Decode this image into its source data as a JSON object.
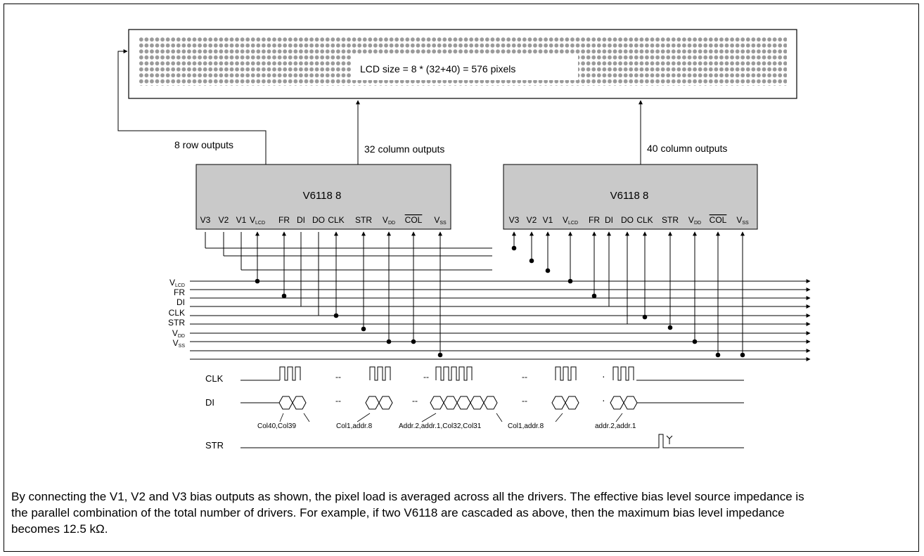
{
  "lcd": {
    "label": "LCD size = 8 * (32+40) = 576 pixels",
    "rows": 8,
    "columns": 72
  },
  "outputs": {
    "rows": "8 row outputs",
    "cols_left": "32 column outputs",
    "cols_right": "40 column outputs"
  },
  "drivers": [
    {
      "name": "V6118 8"
    },
    {
      "name": "V6118 8"
    }
  ],
  "pins": [
    {
      "text": "V3",
      "sub": ""
    },
    {
      "text": "V2",
      "sub": ""
    },
    {
      "text": "V1",
      "sub": ""
    },
    {
      "text": "V",
      "sub": "LCD"
    },
    {
      "text": "FR",
      "sub": ""
    },
    {
      "text": "DI",
      "sub": ""
    },
    {
      "text": "DO",
      "sub": ""
    },
    {
      "text": "CLK",
      "sub": ""
    },
    {
      "text": "STR",
      "sub": ""
    },
    {
      "text": "V",
      "sub": "DD"
    },
    {
      "text": "COL",
      "sub": "",
      "overline": true
    },
    {
      "text": "V",
      "sub": "SS"
    }
  ],
  "bus": [
    {
      "text": "V",
      "sub": "LCD"
    },
    {
      "text": "FR",
      "sub": ""
    },
    {
      "text": "DI",
      "sub": ""
    },
    {
      "text": "CLK",
      "sub": ""
    },
    {
      "text": "STR",
      "sub": ""
    },
    {
      "text": "V",
      "sub": "DD"
    },
    {
      "text": "V",
      "sub": "SS"
    }
  ],
  "timing": {
    "signals": [
      "CLK",
      "DI",
      "STR"
    ],
    "dots": "--",
    "small_dot": "·",
    "annotations": [
      "Col40,Col39",
      "Col1,addr.8",
      "Addr.2,addr.1,Col32,Col31",
      "Col1,addr.8",
      "addr.2,addr.1"
    ]
  },
  "caption": "By connecting the V1, V2 and V3 bias outputs as shown, the pixel load is averaged across all the drivers. The effective bias level source impedance is the parallel combination of the total number of drivers.  For example, if two V6118 are cascaded as above, then the maximum bias level impedance becomes 12.5 kΩ."
}
